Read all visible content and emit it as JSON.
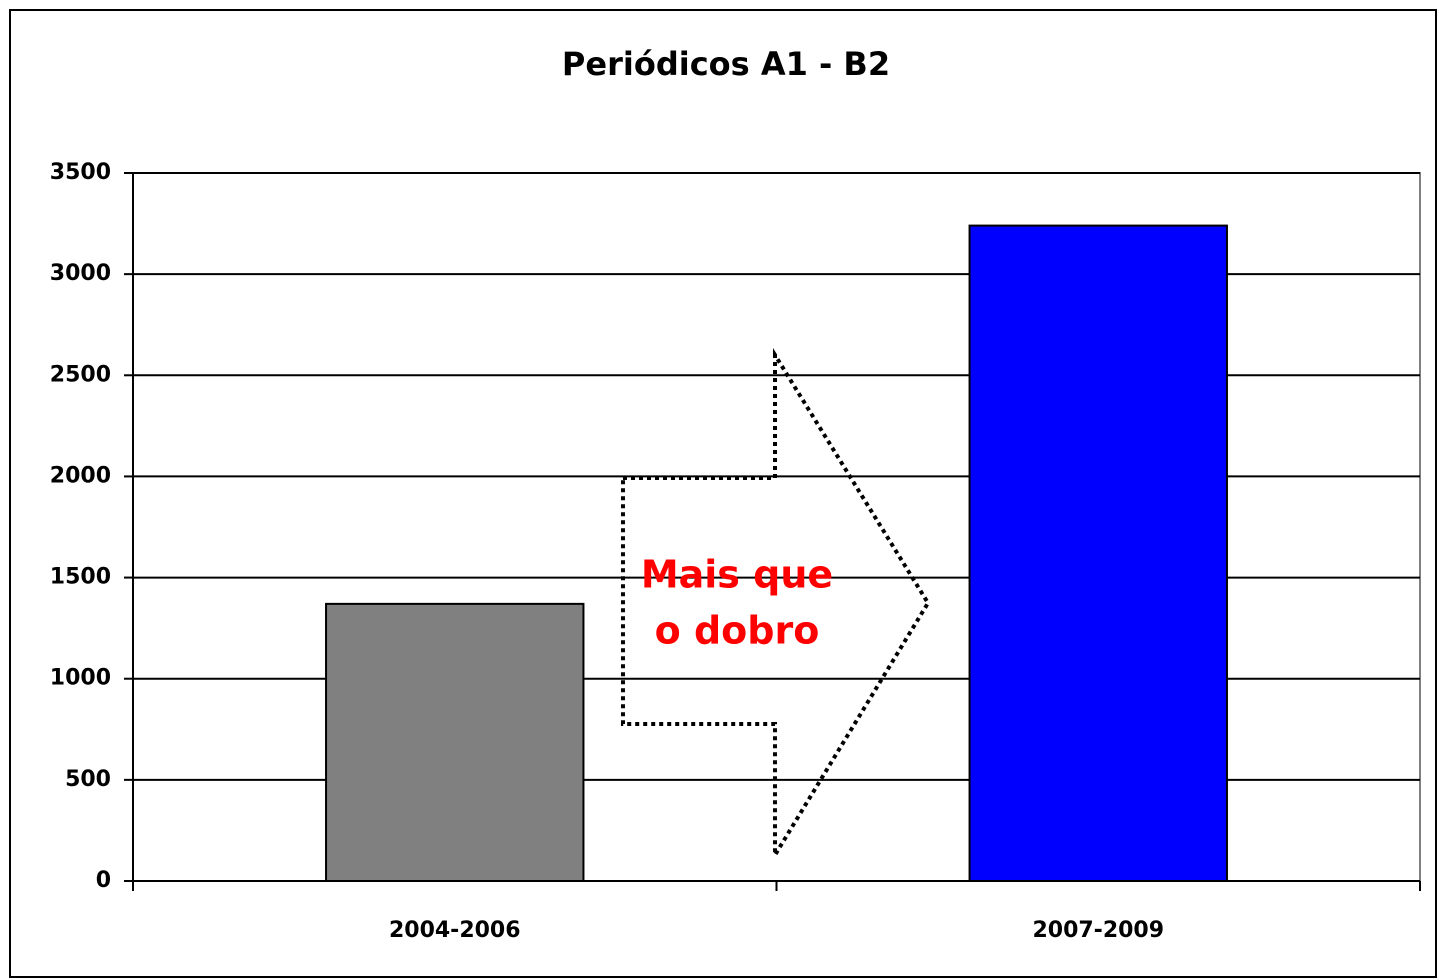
{
  "chart_data": {
    "type": "bar",
    "title": "Periódicos A1 - B2",
    "categories": [
      "2004-2006",
      "2007-2009"
    ],
    "values": [
      1370,
      3240
    ],
    "colors": [
      "#808080",
      "#0000ff"
    ],
    "ylim": [
      0,
      3500
    ],
    "yticks": [
      0,
      500,
      1000,
      1500,
      2000,
      2500,
      3000,
      3500
    ],
    "grid": true,
    "annotation": [
      "Mais que",
      "o dobro"
    ]
  }
}
